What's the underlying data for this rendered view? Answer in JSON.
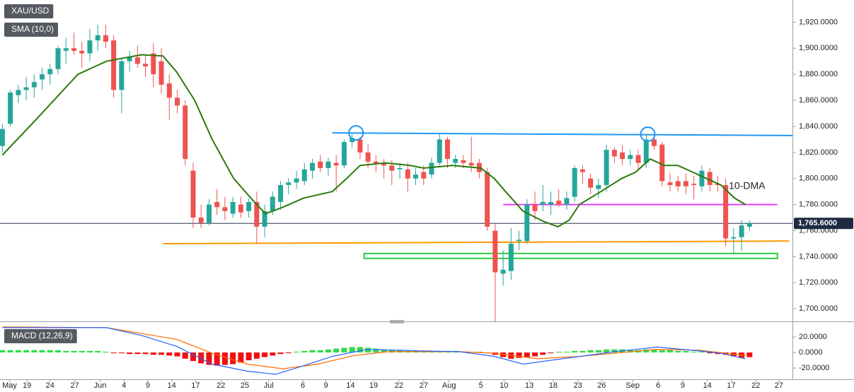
{
  "chart_data": {
    "type": "candlestick",
    "title": "XAU/USD",
    "up_color": "#26a69a",
    "down_color": "#ef5350",
    "xlim": [
      -0.3,
      99.4
    ],
    "ylim": [
      1692,
      1937
    ],
    "yticks": [
      {
        "value": 1700,
        "label": "1,700.0000"
      },
      {
        "value": 1720,
        "label": "1,720.0000"
      },
      {
        "value": 1740,
        "label": "1,740.0000"
      },
      {
        "value": 1760,
        "label": "1,760.0000"
      },
      {
        "value": 1780,
        "label": "1,780.0000"
      },
      {
        "value": 1800,
        "label": "1,800.0000"
      },
      {
        "value": 1820,
        "label": "1,820.0000"
      },
      {
        "value": 1840,
        "label": "1,840.0000"
      },
      {
        "value": 1860,
        "label": "1,860.0000"
      },
      {
        "value": 1880,
        "label": "1,880.0000"
      },
      {
        "value": 1900,
        "label": "1,900.0000"
      },
      {
        "value": 1920,
        "label": "1,920.0000"
      }
    ],
    "xticks": [
      {
        "value": 0.9,
        "label": "May"
      },
      {
        "value": 3.1,
        "label": "19"
      },
      {
        "value": 6.0,
        "label": "24"
      },
      {
        "value": 9.1,
        "label": "27"
      },
      {
        "value": 12.3,
        "label": "Jun"
      },
      {
        "value": 15.3,
        "label": "4"
      },
      {
        "value": 18.3,
        "label": "9"
      },
      {
        "value": 21.3,
        "label": "14"
      },
      {
        "value": 24.3,
        "label": "17"
      },
      {
        "value": 27.5,
        "label": "22"
      },
      {
        "value": 30.5,
        "label": "25"
      },
      {
        "value": 33.5,
        "label": "Jul"
      },
      {
        "value": 37.8,
        "label": "6"
      },
      {
        "value": 40.7,
        "label": "9"
      },
      {
        "value": 43.8,
        "label": "14"
      },
      {
        "value": 46.7,
        "label": "19"
      },
      {
        "value": 49.9,
        "label": "22"
      },
      {
        "value": 53.0,
        "label": "27"
      },
      {
        "value": 56.2,
        "label": "Aug"
      },
      {
        "value": 60.2,
        "label": "5"
      },
      {
        "value": 63.1,
        "label": "10"
      },
      {
        "value": 66.3,
        "label": "13"
      },
      {
        "value": 69.3,
        "label": "18"
      },
      {
        "value": 72.4,
        "label": "23"
      },
      {
        "value": 75.4,
        "label": "26"
      },
      {
        "value": 79.3,
        "label": "Sep"
      },
      {
        "value": 82.5,
        "label": "6"
      },
      {
        "value": 85.6,
        "label": "9"
      },
      {
        "value": 88.7,
        "label": "14"
      },
      {
        "value": 91.7,
        "label": "17"
      },
      {
        "value": 94.8,
        "label": "22"
      },
      {
        "value": 97.7,
        "label": "27"
      }
    ],
    "ohlc": [
      [
        1825,
        1842,
        1820,
        1838
      ],
      [
        1842,
        1868,
        1840,
        1866
      ],
      [
        1864,
        1872,
        1858,
        1868
      ],
      [
        1868,
        1878,
        1860,
        1870
      ],
      [
        1870,
        1880,
        1862,
        1874
      ],
      [
        1876,
        1885,
        1868,
        1880
      ],
      [
        1880,
        1888,
        1872,
        1884
      ],
      [
        1884,
        1902,
        1880,
        1900
      ],
      [
        1898,
        1908,
        1888,
        1900
      ],
      [
        1900,
        1912,
        1895,
        1898
      ],
      [
        1898,
        1905,
        1885,
        1896
      ],
      [
        1896,
        1915,
        1890,
        1906
      ],
      [
        1906,
        1918,
        1898,
        1910
      ],
      [
        1910,
        1918,
        1900,
        1905
      ],
      [
        1906,
        1910,
        1862,
        1868
      ],
      [
        1868,
        1892,
        1850,
        1890
      ],
      [
        1890,
        1898,
        1882,
        1893
      ],
      [
        1893,
        1902,
        1885,
        1888
      ],
      [
        1888,
        1895,
        1878,
        1886
      ],
      [
        1896,
        1904,
        1870,
        1880
      ],
      [
        1890,
        1900,
        1865,
        1872
      ],
      [
        1873,
        1880,
        1845,
        1862
      ],
      [
        1862,
        1868,
        1850,
        1856
      ],
      [
        1856,
        1860,
        1810,
        1815
      ],
      [
        1806,
        1812,
        1762,
        1770
      ],
      [
        1770,
        1780,
        1762,
        1766
      ],
      [
        1766,
        1784,
        1764,
        1780
      ],
      [
        1782,
        1792,
        1772,
        1778
      ],
      [
        1778,
        1786,
        1768,
        1775
      ],
      [
        1773,
        1786,
        1770,
        1782
      ],
      [
        1780,
        1786,
        1770,
        1774
      ],
      [
        1775,
        1785,
        1770,
        1782
      ],
      [
        1782,
        1790,
        1750,
        1763
      ],
      [
        1763,
        1780,
        1755,
        1775
      ],
      [
        1775,
        1790,
        1772,
        1786
      ],
      [
        1782,
        1798,
        1776,
        1795
      ],
      [
        1795,
        1800,
        1788,
        1797
      ],
      [
        1797,
        1806,
        1792,
        1800
      ],
      [
        1798,
        1812,
        1795,
        1807
      ],
      [
        1806,
        1815,
        1800,
        1812
      ],
      [
        1813,
        1818,
        1805,
        1808
      ],
      [
        1808,
        1816,
        1802,
        1813
      ],
      [
        1812,
        1818,
        1790,
        1810
      ],
      [
        1810,
        1830,
        1808,
        1828
      ],
      [
        1828,
        1834,
        1824,
        1831
      ],
      [
        1830,
        1832,
        1815,
        1820
      ],
      [
        1820,
        1826,
        1808,
        1813
      ],
      [
        1813,
        1818,
        1805,
        1811
      ],
      [
        1812,
        1815,
        1800,
        1810
      ],
      [
        1810,
        1814,
        1795,
        1806
      ],
      [
        1807,
        1812,
        1800,
        1808
      ],
      [
        1807,
        1812,
        1790,
        1800
      ],
      [
        1800,
        1808,
        1795,
        1803
      ],
      [
        1805,
        1810,
        1795,
        1800
      ],
      [
        1803,
        1816,
        1800,
        1812
      ],
      [
        1812,
        1834,
        1810,
        1830
      ],
      [
        1830,
        1832,
        1808,
        1815
      ],
      [
        1812,
        1818,
        1808,
        1815
      ],
      [
        1814,
        1818,
        1808,
        1812
      ],
      [
        1812,
        1832,
        1805,
        1810
      ],
      [
        1812,
        1815,
        1800,
        1805
      ],
      [
        1805,
        1808,
        1760,
        1763
      ],
      [
        1760,
        1765,
        1690,
        1728
      ],
      [
        1727,
        1745,
        1718,
        1730
      ],
      [
        1729,
        1762,
        1722,
        1750
      ],
      [
        1752,
        1760,
        1745,
        1753
      ],
      [
        1752,
        1784,
        1750,
        1780
      ],
      [
        1780,
        1790,
        1768,
        1775
      ],
      [
        1780,
        1795,
        1775,
        1782
      ],
      [
        1780,
        1790,
        1772,
        1782
      ],
      [
        1783,
        1792,
        1778,
        1780
      ],
      [
        1780,
        1790,
        1776,
        1785
      ],
      [
        1786,
        1810,
        1782,
        1808
      ],
      [
        1807,
        1810,
        1796,
        1805
      ],
      [
        1800,
        1804,
        1788,
        1793
      ],
      [
        1792,
        1800,
        1785,
        1795
      ],
      [
        1795,
        1826,
        1790,
        1822
      ],
      [
        1822,
        1824,
        1812,
        1817
      ],
      [
        1820,
        1826,
        1810,
        1815
      ],
      [
        1815,
        1822,
        1810,
        1818
      ],
      [
        1818,
        1822,
        1806,
        1812
      ],
      [
        1812,
        1834,
        1808,
        1830
      ],
      [
        1830,
        1834,
        1822,
        1825
      ],
      [
        1826,
        1828,
        1794,
        1798
      ],
      [
        1797,
        1804,
        1790,
        1795
      ],
      [
        1798,
        1802,
        1790,
        1794
      ],
      [
        1798,
        1804,
        1788,
        1794
      ],
      [
        1796,
        1802,
        1784,
        1795
      ],
      [
        1794,
        1810,
        1790,
        1806
      ],
      [
        1805,
        1808,
        1790,
        1795
      ],
      [
        1796,
        1802,
        1790,
        1795
      ],
      [
        1795,
        1800,
        1748,
        1754
      ],
      [
        1754,
        1762,
        1742,
        1755
      ],
      [
        1755,
        1768,
        1745,
        1764
      ],
      [
        1763,
        1768,
        1760,
        1765.6
      ]
    ],
    "last_price": {
      "value": 1765.6,
      "label": "1,765.6000"
    },
    "sma": {
      "name": "SMA (10,0)",
      "color": "#2b7a0b",
      "x": [
        0,
        4.2,
        9.5,
        13.1,
        17.5,
        20.2,
        21.9,
        24.2,
        26.4,
        29.1,
        31.7,
        33.1,
        35.3,
        37.9,
        41.5,
        43.3,
        45.0,
        48.2,
        51.3,
        53.0,
        56.6,
        60.2,
        61.9,
        63.3,
        65.5,
        68.1,
        69.9,
        71.3,
        72.6,
        75.3,
        77.9,
        79.7,
        81.5,
        83.3,
        85.0,
        86.8,
        88.6,
        90.4,
        92.1,
        93.5
      ],
      "values": [
        1818,
        1845,
        1880,
        1890,
        1895,
        1894,
        1882,
        1860,
        1830,
        1800,
        1782,
        1773,
        1778,
        1785,
        1790,
        1800,
        1810,
        1812,
        1810,
        1808,
        1810,
        1808,
        1800,
        1790,
        1775,
        1767,
        1763,
        1768,
        1780,
        1790,
        1800,
        1805,
        1815,
        1810,
        1810,
        1805,
        1800,
        1795,
        1785,
        1780
      ]
    },
    "annotations": {
      "lines": [
        {
          "color": "#2196f3",
          "x": [
            41.5,
            99.4
          ],
          "y": [
            1835,
            1833
          ]
        },
        {
          "color": "#e040fb",
          "x": [
            63.0,
            97.5
          ],
          "y": [
            1780,
            1780
          ]
        },
        {
          "color": "#ff9800",
          "x": [
            20.2,
            99.0
          ],
          "y": [
            1750,
            1752
          ]
        }
      ],
      "circles": [
        {
          "color": "#2196f3",
          "x": 44.5,
          "y": 1835
        },
        {
          "color": "#2196f3",
          "x": 81.2,
          "y": 1834
        }
      ],
      "box": {
        "color": "#2ecc40",
        "x": [
          45.5,
          97.5
        ],
        "y": [
          1742.5,
          1738.7
        ]
      },
      "text": {
        "text": "10-DMA",
        "color": "#2b7a0b",
        "x": 91.4,
        "y": 1794
      }
    },
    "macd": {
      "name": "MACD (12,26,9)",
      "ylim": [
        -34.5,
        35.5
      ],
      "yticks": [
        {
          "value": 20,
          "label": "20.0000"
        },
        {
          "value": 0,
          "label": "0.0000"
        },
        {
          "value": -20,
          "label": "-20.0000"
        }
      ],
      "hist_up_color": "#33d94a",
      "hist_down_color": "#f01010",
      "histogram": [
        3,
        3,
        3,
        3,
        3,
        3,
        3,
        3,
        2,
        2,
        2,
        2,
        2,
        1,
        -1,
        -1,
        -2,
        -2,
        -2,
        -3,
        -3,
        -4,
        -5,
        -8,
        -11,
        -14,
        -16,
        -17,
        -16,
        -15,
        -13,
        -10,
        -8,
        -6,
        -4,
        -2,
        -1,
        1,
        2,
        3,
        3,
        4,
        5,
        6,
        7,
        7,
        6,
        5,
        4,
        3,
        3,
        2,
        2,
        1,
        1,
        1,
        1,
        2,
        1,
        1,
        1,
        -1,
        -3,
        -6,
        -8,
        -7,
        -6,
        -5,
        -3,
        -1,
        1,
        1,
        2,
        2,
        3,
        3,
        4,
        4,
        4,
        3,
        3,
        4,
        4,
        3,
        3,
        2,
        2,
        1,
        1,
        -1,
        -2,
        -3,
        -5,
        -7,
        -6
      ],
      "macd_line": {
        "color": "#2962ff",
        "x": [
          0,
          13.1,
          17.5,
          21.9,
          26.4,
          30.8,
          34.4,
          37.9,
          41.5,
          45.9,
          53.0,
          57.5,
          61.9,
          65.5,
          69.0,
          73.5,
          77.0,
          82.4,
          87.7,
          90.4,
          93.5
        ],
        "values": [
          32,
          32,
          22,
          8,
          -15,
          -24,
          -28,
          -17,
          -5,
          4,
          2,
          1,
          -5,
          -15,
          -10,
          -4,
          1,
          7,
          2,
          -1,
          -8
        ]
      },
      "signal_line": {
        "color": "#ff6d00",
        "x": [
          0,
          13.1,
          21.9,
          26.4,
          30.8,
          35.3,
          39.7,
          44.2,
          48.6,
          57.5,
          61.9,
          67.3,
          72.6,
          77.9,
          82.4,
          87.7,
          93.5
        ],
        "values": [
          33,
          32,
          17,
          -1,
          -15,
          -21,
          -15,
          -4,
          1,
          1,
          -1,
          -8,
          -5,
          0,
          4,
          3,
          -4
        ]
      }
    }
  }
}
